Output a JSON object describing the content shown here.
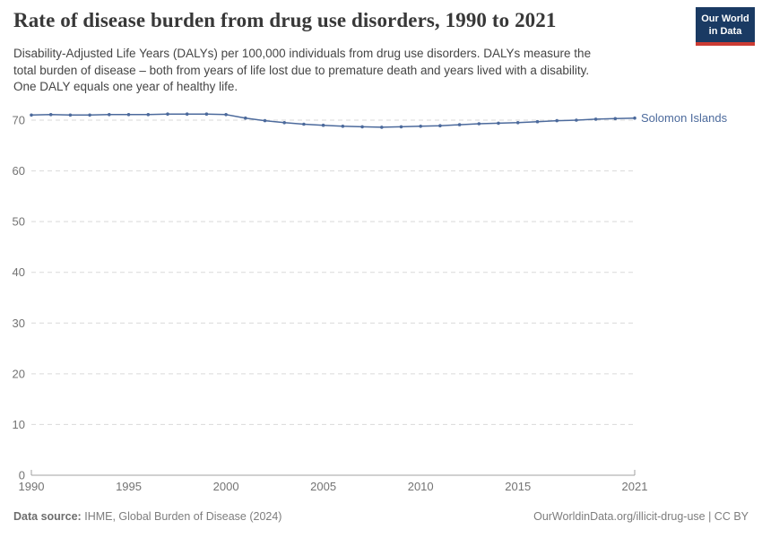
{
  "header": {
    "title": "Rate of disease burden from drug use disorders, 1990 to 2021",
    "logo": {
      "line1": "Our World",
      "line2": "in Data"
    }
  },
  "subtitle": {
    "lines": [
      "Disability-Adjusted Life Years (DALYs) per 100,000 individuals from drug use disorders. DALYs measure the",
      "total burden of disease – both from years of life lost due to premature death and years lived with a disability.",
      "One DALY equals one year of healthy life."
    ]
  },
  "chart_data": {
    "type": "line",
    "title": "Rate of disease burden from drug use disorders, 1990 to 2021",
    "xlabel": "",
    "ylabel": "DALYs per 100,000 individuals",
    "x": [
      1990,
      1991,
      1992,
      1993,
      1994,
      1995,
      1996,
      1997,
      1998,
      1999,
      2000,
      2001,
      2002,
      2003,
      2004,
      2005,
      2006,
      2007,
      2008,
      2009,
      2010,
      2011,
      2012,
      2013,
      2014,
      2015,
      2016,
      2017,
      2018,
      2019,
      2020,
      2021
    ],
    "series": [
      {
        "name": "Solomon Islands",
        "color": "#4c6a9c",
        "values": [
          71.0,
          71.1,
          71.0,
          71.0,
          71.1,
          71.1,
          71.1,
          71.2,
          71.2,
          71.2,
          71.1,
          70.4,
          69.9,
          69.5,
          69.2,
          69.0,
          68.8,
          68.7,
          68.6,
          68.7,
          68.8,
          68.9,
          69.1,
          69.3,
          69.4,
          69.5,
          69.7,
          69.9,
          70.0,
          70.2,
          70.3,
          70.4
        ]
      }
    ],
    "x_ticks": [
      1990,
      1995,
      2000,
      2005,
      2010,
      2015,
      2021
    ],
    "y_ticks": [
      0,
      10,
      20,
      30,
      40,
      50,
      60,
      70
    ],
    "xlim": [
      1990,
      2021
    ],
    "ylim": [
      0,
      74
    ],
    "grid": "horizontal-dashed",
    "legend_position": "end-of-line-label"
  },
  "colors": {
    "line": "#4c6a9c",
    "grid": "#d9d9d9",
    "axis": "#a1a1a1",
    "tick_label": "#737373",
    "title": "#383838",
    "subtitle": "#454545",
    "footer": "#7d7d7d",
    "logo_bg": "#1a3a63",
    "logo_stripe": "#cc3b33"
  },
  "footer": {
    "source_label": "Data source:",
    "source_value": "IHME, Global Burden of Disease (2024)",
    "credit": "OurWorldinData.org/illicit-drug-use | CC BY"
  }
}
